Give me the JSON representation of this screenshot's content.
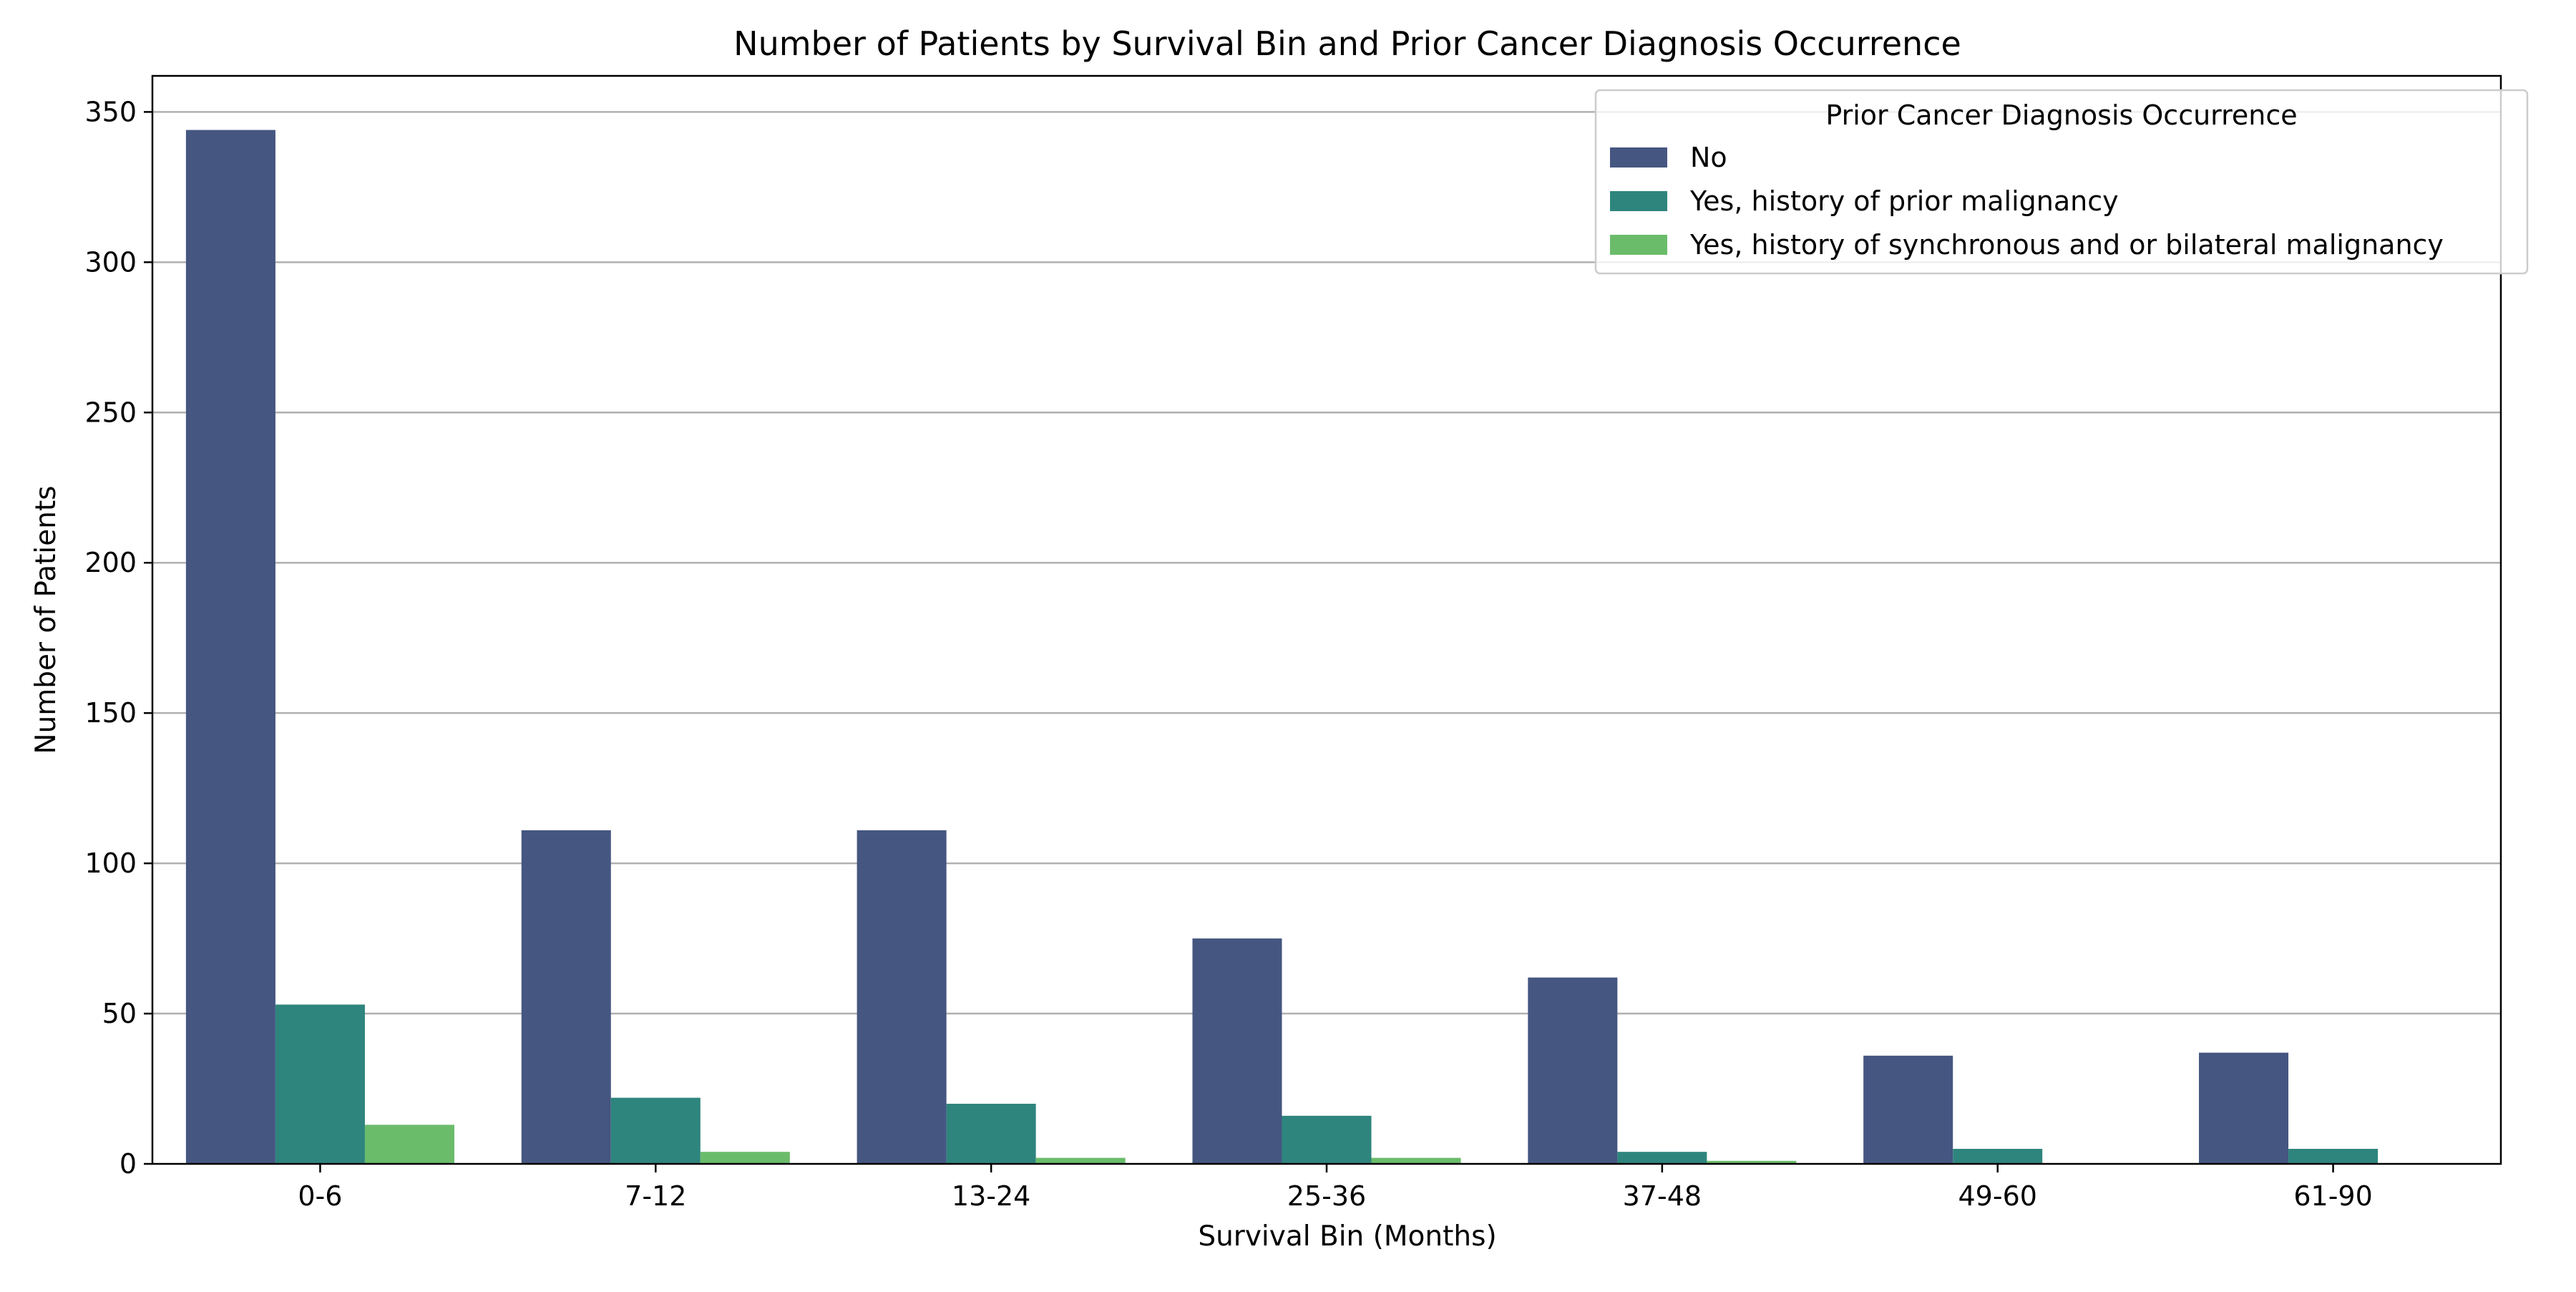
{
  "chart_data": {
    "type": "bar",
    "title": "Number of Patients by Survival Bin and Prior Cancer Diagnosis Occurrence",
    "xlabel": "Survival Bin (Months)",
    "ylabel": "Number of Patients",
    "categories": [
      "0-6",
      "7-12",
      "13-24",
      "25-36",
      "37-48",
      "49-60",
      "61-90"
    ],
    "ylim": [
      0,
      362
    ],
    "yticks": [
      0,
      50,
      100,
      150,
      200,
      250,
      300,
      350
    ],
    "grid": "horizontal",
    "legend": {
      "title": "Prior Cancer Diagnosis Occurrence",
      "placement": "top-right"
    },
    "series": [
      {
        "name": "No",
        "color": "#455681",
        "values": [
          344,
          111,
          111,
          75,
          62,
          36,
          37
        ]
      },
      {
        "name": "Yes, history of prior malignancy",
        "color": "#2e857d",
        "values": [
          53,
          22,
          20,
          16,
          4,
          5,
          5
        ]
      },
      {
        "name": "Yes, history of synchronous and or bilateral malignancy",
        "color": "#6abc6a",
        "values": [
          13,
          4,
          2,
          2,
          1,
          0,
          0
        ]
      }
    ]
  }
}
